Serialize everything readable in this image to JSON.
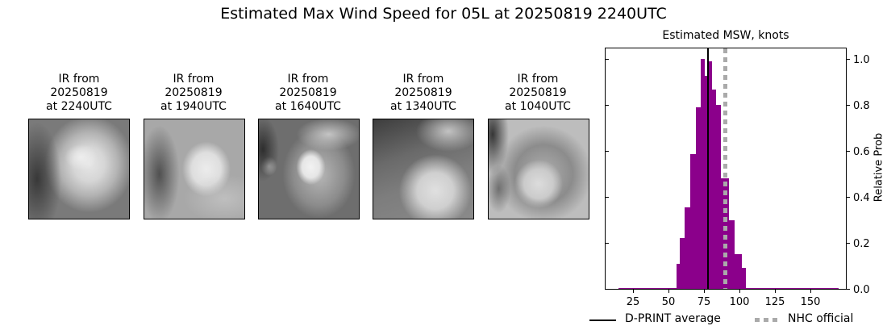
{
  "figure": {
    "title": "Estimated Max Wind Speed for 05L at 20250819 2240UTC"
  },
  "panels": [
    {
      "line1": "IR from",
      "line2": "20250819",
      "line3": "at 2240UTC"
    },
    {
      "line1": "IR from",
      "line2": "20250819",
      "line3": "at 1940UTC"
    },
    {
      "line1": "IR from",
      "line2": "20250819",
      "line3": "at 1640UTC"
    },
    {
      "line1": "IR from",
      "line2": "20250819",
      "line3": "at 1340UTC"
    },
    {
      "line1": "IR from",
      "line2": "20250819",
      "line3": "at 1040UTC"
    }
  ],
  "histogram": {
    "title": "Estimated MSW, knots",
    "ylabel": "Relative Prob",
    "xticks": [
      "25",
      "50",
      "75",
      "100",
      "125",
      "150"
    ],
    "yticks": [
      "0.0",
      "0.2",
      "0.4",
      "0.6",
      "0.8",
      "1.0"
    ],
    "legend": {
      "dprint": "D-PRINT average",
      "nhc": "NHC official"
    }
  },
  "colors": {
    "bar": "#8b008b",
    "dprint_line": "#000000",
    "nhc_line": "#aaaaaa"
  },
  "chart_data": {
    "type": "bar",
    "title": "Estimated MSW, knots",
    "suptitle": "Estimated Max Wind Speed for 05L at 20250819 2240UTC",
    "xlabel": "",
    "ylabel": "Relative Prob",
    "xlim": [
      5,
      175
    ],
    "ylim": [
      0,
      1.05
    ],
    "xticks": [
      25,
      50,
      75,
      100,
      125,
      150
    ],
    "yticks": [
      0.0,
      0.2,
      0.4,
      0.6,
      0.8,
      1.0
    ],
    "bins": [
      {
        "x0": 15,
        "x1": 55.7,
        "value": 0.005
      },
      {
        "x0": 55.7,
        "x1": 58,
        "value": 0.11
      },
      {
        "x0": 58,
        "x1": 61.4,
        "value": 0.22
      },
      {
        "x0": 61.4,
        "x1": 65.3,
        "value": 0.355
      },
      {
        "x0": 65.3,
        "x1": 69.3,
        "value": 0.585
      },
      {
        "x0": 69.3,
        "x1": 72.7,
        "value": 0.79
      },
      {
        "x0": 72.7,
        "x1": 75.6,
        "value": 1.0
      },
      {
        "x0": 75.6,
        "x1": 78.4,
        "value": 0.925
      },
      {
        "x0": 78.4,
        "x1": 80.7,
        "value": 0.99
      },
      {
        "x0": 80.7,
        "x1": 83.5,
        "value": 0.865
      },
      {
        "x0": 83.5,
        "x1": 86.9,
        "value": 0.8
      },
      {
        "x0": 86.9,
        "x1": 92.6,
        "value": 0.48
      },
      {
        "x0": 92.6,
        "x1": 96.6,
        "value": 0.3
      },
      {
        "x0": 96.6,
        "x1": 101.7,
        "value": 0.15
      },
      {
        "x0": 101.7,
        "x1": 104.5,
        "value": 0.09
      },
      {
        "x0": 104.5,
        "x1": 170,
        "value": 0.005
      }
    ],
    "lines": [
      {
        "name": "D-PRINT average",
        "x": 78,
        "style": "solid",
        "color": "#000000"
      },
      {
        "name": "NHC official",
        "x": 90,
        "style": "dotted",
        "color": "#aaaaaa"
      }
    ],
    "legend": [
      "D-PRINT average",
      "NHC official"
    ],
    "legend_position": "bottom",
    "grid": false
  }
}
